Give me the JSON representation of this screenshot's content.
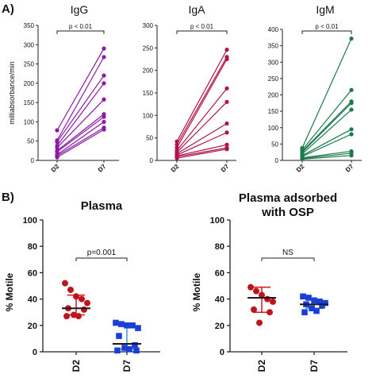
{
  "panel_labels": [
    "A)",
    "B)"
  ],
  "colors": {
    "igg": "#8c1aa6",
    "iga": "#b0124a",
    "igm": "#1a7a4a",
    "d2_red": "#c0141c",
    "d7_blue": "#1a3fd6",
    "median_dark": "#1a1a1a",
    "iqr_red": "#d4141c",
    "iqr_blue": "#3a9ad9"
  },
  "chart_data": [
    {
      "type": "line",
      "title": "IgG",
      "ylabel": "milliabsorbance/min",
      "categories": [
        "D2",
        "D7"
      ],
      "ylim": [
        0,
        350
      ],
      "yticks": [
        "0",
        "50",
        "100",
        "150",
        "200",
        "250",
        "300",
        "350"
      ],
      "significance": "p < 0.01",
      "series": [
        {
          "values": [
            78,
            290
          ]
        },
        {
          "values": [
            52,
            268
          ]
        },
        {
          "values": [
            48,
            220
          ]
        },
        {
          "values": [
            38,
            200
          ]
        },
        {
          "values": [
            33,
            158
          ]
        },
        {
          "values": [
            25,
            120
          ]
        },
        {
          "values": [
            22,
            113
          ]
        },
        {
          "values": [
            15,
            100
          ]
        },
        {
          "values": [
            12,
            85
          ]
        },
        {
          "values": [
            8,
            80
          ]
        }
      ]
    },
    {
      "type": "line",
      "title": "IgA",
      "ylabel": "",
      "categories": [
        "D2",
        "D7"
      ],
      "ylim": [
        0,
        300
      ],
      "yticks": [
        "0",
        "50",
        "100",
        "150",
        "200",
        "250",
        "300"
      ],
      "significance": "p < 0.01",
      "series": [
        {
          "values": [
            42,
            246
          ]
        },
        {
          "values": [
            35,
            230
          ]
        },
        {
          "values": [
            28,
            225
          ]
        },
        {
          "values": [
            22,
            160
          ]
        },
        {
          "values": [
            18,
            130
          ]
        },
        {
          "values": [
            15,
            82
          ]
        },
        {
          "values": [
            12,
            62
          ]
        },
        {
          "values": [
            10,
            35
          ]
        },
        {
          "values": [
            8,
            28
          ]
        },
        {
          "values": [
            5,
            25
          ]
        }
      ]
    },
    {
      "type": "line",
      "title": "IgM",
      "ylabel": "",
      "categories": [
        "D2",
        "D7"
      ],
      "ylim": [
        0,
        400
      ],
      "yticks": [
        "0",
        "50",
        "100",
        "150",
        "200",
        "250",
        "300",
        "350",
        "400"
      ],
      "significance": "p < 0.01",
      "series": [
        {
          "values": [
            38,
            372
          ]
        },
        {
          "values": [
            32,
            215
          ]
        },
        {
          "values": [
            28,
            180
          ]
        },
        {
          "values": [
            25,
            175
          ]
        },
        {
          "values": [
            20,
            155
          ]
        },
        {
          "values": [
            15,
            95
          ]
        },
        {
          "values": [
            12,
            80
          ]
        },
        {
          "values": [
            8,
            28
          ]
        },
        {
          "values": [
            6,
            22
          ]
        },
        {
          "values": [
            4,
            15
          ]
        }
      ]
    },
    {
      "type": "scatter",
      "title": "Plasma",
      "ylabel": "% Motile",
      "categories": [
        "D2",
        "D7"
      ],
      "ylim": [
        0,
        100
      ],
      "yticks": [
        "0",
        "20",
        "40",
        "60",
        "80",
        "100"
      ],
      "significance": "p=0.001",
      "groups": [
        {
          "name": "D2",
          "marker": "circle",
          "color": "d2_red",
          "values": [
            52,
            47,
            42,
            40,
            37,
            33,
            32,
            28,
            27,
            27
          ],
          "median": 33,
          "q1": 28,
          "q3": 43
        },
        {
          "name": "D7",
          "marker": "square",
          "color": "d7_blue",
          "values": [
            22,
            21,
            20,
            20,
            18,
            12,
            5,
            3,
            2,
            1,
            1
          ],
          "median": 6,
          "q1": 2,
          "q3": 21
        }
      ]
    },
    {
      "type": "scatter",
      "title": "Plasma adsorbed with OSP",
      "title_lines": [
        "Plasma adsorbed",
        "with OSP"
      ],
      "ylabel": "% Motile",
      "categories": [
        "D2",
        "D7"
      ],
      "ylim": [
        0,
        100
      ],
      "yticks": [
        "0",
        "20",
        "40",
        "60",
        "80",
        "100"
      ],
      "significance": "NS",
      "groups": [
        {
          "name": "D2",
          "marker": "circle",
          "color": "d2_red",
          "values": [
            49,
            46,
            43,
            40,
            38,
            32,
            30,
            22
          ],
          "median": 41,
          "q1": 30,
          "q3": 49
        },
        {
          "name": "D7",
          "marker": "square",
          "color": "d7_blue",
          "values": [
            42,
            41,
            39,
            38,
            37,
            36,
            35,
            33,
            31,
            30
          ],
          "median": 36,
          "q1": 33,
          "q3": 40
        }
      ]
    }
  ]
}
